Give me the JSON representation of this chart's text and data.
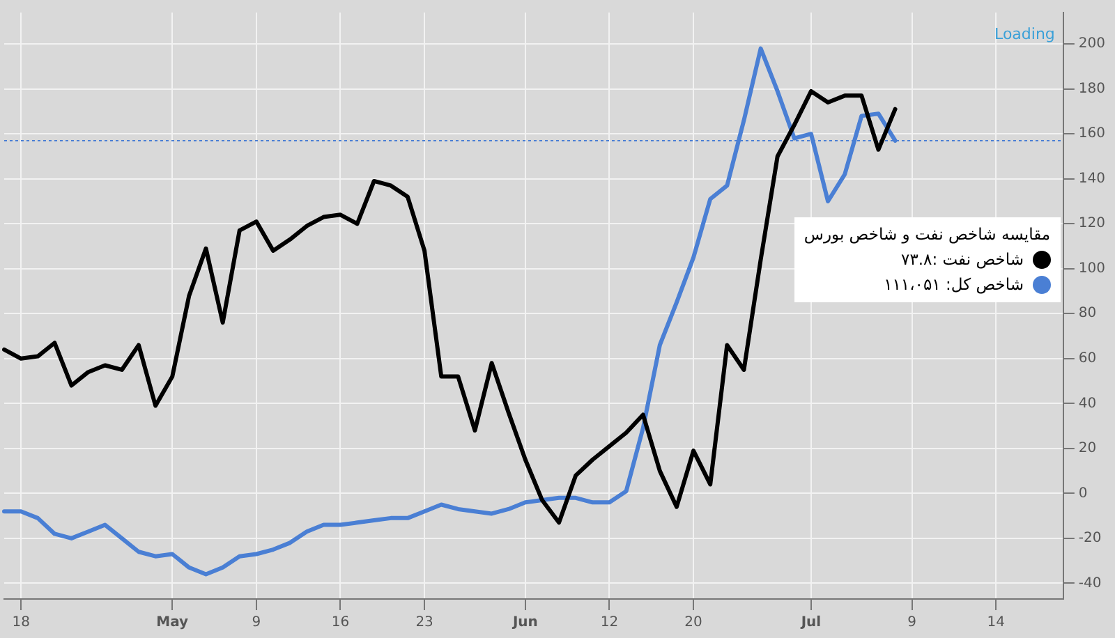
{
  "chart_data": {
    "type": "line",
    "categories": [
      null,
      "18",
      null,
      null,
      null,
      null,
      null,
      null,
      null,
      null,
      "May",
      null,
      null,
      null,
      null,
      "9",
      null,
      null,
      null,
      null,
      "16",
      null,
      null,
      null,
      null,
      "23",
      null,
      null,
      null,
      null,
      null,
      "Jun",
      null,
      null,
      null,
      null,
      "12",
      null,
      null,
      null,
      null,
      "20",
      null,
      null,
      null,
      null,
      null,
      null,
      "Jul",
      null,
      null,
      null,
      null,
      null,
      "9",
      null,
      null,
      null,
      null,
      "14",
      null,
      null,
      null,
      null
    ],
    "series": [
      {
        "name": "شاخص نفت :۷۳.۸",
        "color": "#000000",
        "values": [
          64,
          60,
          61,
          67,
          48,
          54,
          57,
          55,
          66,
          39,
          52,
          88,
          109,
          76,
          117,
          121,
          108,
          113,
          119,
          123,
          124,
          120,
          139,
          137,
          132,
          108,
          52,
          52,
          28,
          58,
          36,
          15,
          -3,
          -13,
          8,
          15,
          21,
          27,
          35,
          10,
          -6,
          19,
          4,
          66,
          55,
          104,
          150,
          164,
          179,
          174,
          177,
          177,
          153,
          171,
          null,
          null,
          null,
          null,
          null,
          null,
          null,
          null,
          null,
          null
        ]
      },
      {
        "name": "شاخص کل: ۱۱۱،۰۵۱",
        "color": "#4a7fd4",
        "values": [
          -8,
          -8,
          -11,
          -18,
          -20,
          -17,
          -14,
          -20,
          -26,
          -28,
          -27,
          -33,
          -36,
          -33,
          -28,
          -27,
          -25,
          -22,
          -17,
          -14,
          -14,
          -13,
          -12,
          -11,
          -11,
          -8,
          -5,
          -7,
          -8,
          -9,
          -7,
          -4,
          -3,
          -2,
          -2,
          -4,
          -4,
          1,
          29,
          66,
          85,
          105,
          131,
          137,
          166,
          198,
          179,
          158,
          160,
          130,
          142,
          168,
          169,
          157,
          null,
          null,
          null,
          null,
          null,
          null,
          null,
          null,
          null,
          null
        ]
      }
    ],
    "ylim": [
      -47,
      214
    ],
    "yticks": [
      -40,
      -20,
      0,
      20,
      40,
      60,
      80,
      100,
      120,
      140,
      160,
      180,
      200
    ],
    "grid": true,
    "marker": "none",
    "line_style": "solid",
    "legend": "right",
    "legend_title": "مقایسه شاخص نفت و شاخص بورس",
    "ref_lines": [
      {
        "axis": "y",
        "value": 157,
        "color": "#4a7fd4",
        "line_style": "dotted"
      }
    ],
    "annotations": [
      "Loading"
    ]
  }
}
